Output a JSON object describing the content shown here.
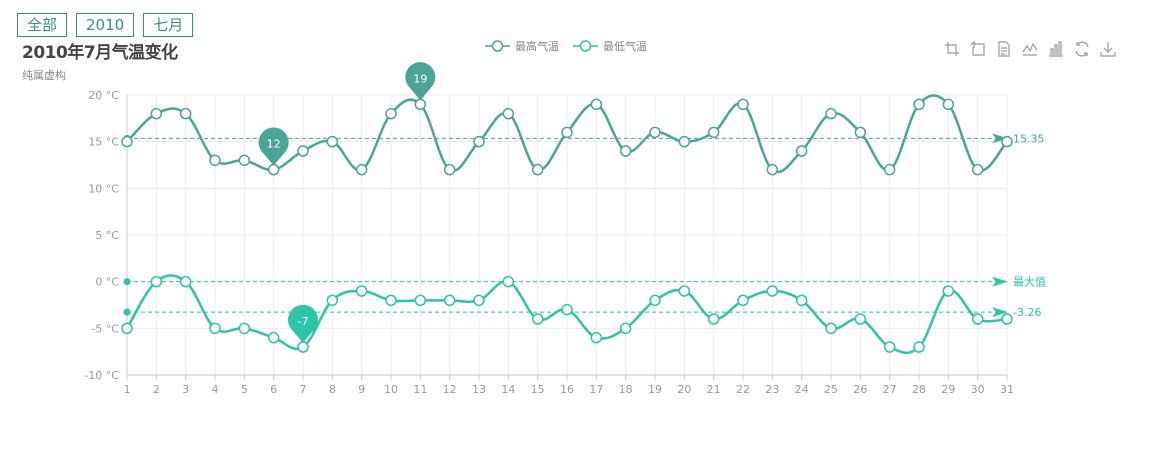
{
  "filters": [
    {
      "label": "全部"
    },
    {
      "label": "2010"
    },
    {
      "label": "七月"
    }
  ],
  "toolbox": [
    {
      "icon": "zoom-select-icon"
    },
    {
      "icon": "zoom-reset-icon"
    },
    {
      "icon": "data-view-icon"
    },
    {
      "icon": "line-chart-icon"
    },
    {
      "icon": "bar-chart-icon"
    },
    {
      "icon": "restore-icon"
    },
    {
      "icon": "download-icon"
    }
  ],
  "colors": {
    "max": "#4aa596",
    "min": "#2ec4a6",
    "grid": "#ececec",
    "axis": "#cccccc"
  },
  "chart_data": {
    "type": "line",
    "title": "2010年7月气温变化",
    "subtitle": "纯属虚构",
    "categories": [
      "1",
      "2",
      "3",
      "4",
      "5",
      "6",
      "7",
      "8",
      "9",
      "10",
      "11",
      "12",
      "13",
      "14",
      "15",
      "16",
      "17",
      "18",
      "19",
      "20",
      "21",
      "22",
      "23",
      "24",
      "25",
      "26",
      "27",
      "28",
      "29",
      "30",
      "31"
    ],
    "ylim": [
      -10,
      20
    ],
    "yticks": [
      -10,
      -5,
      0,
      5,
      10,
      15,
      20
    ],
    "yunit": " °C",
    "grid": true,
    "legend_position": "top-center",
    "series": [
      {
        "name": "最高气温",
        "values": [
          15,
          18,
          18,
          13,
          13,
          12,
          14,
          15,
          12,
          18,
          19,
          12,
          15,
          18,
          12,
          16,
          19,
          14,
          16,
          15,
          16,
          19,
          12,
          14,
          18,
          16,
          12,
          19,
          19,
          12,
          15
        ],
        "mark_points": [
          {
            "label": "19",
            "index": 10,
            "value": 19
          },
          {
            "label": "12",
            "index": 5,
            "value": 12
          }
        ],
        "mark_line": {
          "label": "15.35",
          "value": 15.35
        }
      },
      {
        "name": "最低气温",
        "values": [
          -5,
          0,
          0,
          -5,
          -5,
          -6,
          -7,
          -2,
          -1,
          -2,
          -2,
          -2,
          -2,
          0,
          -4,
          -3,
          -6,
          -5,
          -2,
          -1,
          -4,
          -2,
          -1,
          -2,
          -5,
          -4,
          -7,
          -7,
          -1,
          -4,
          -4
        ],
        "mark_points": [
          {
            "label": "-7",
            "index": 6,
            "value": -7
          }
        ],
        "mark_lines": [
          {
            "label": "最大值",
            "value": 0
          },
          {
            "label": "-3.26",
            "value": -3.26
          }
        ]
      }
    ]
  }
}
